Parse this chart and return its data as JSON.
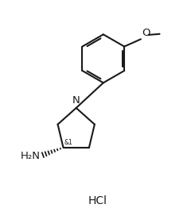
{
  "bg_color": "#ffffff",
  "line_color": "#1a1a1a",
  "line_width": 1.5,
  "font_size": 8.5,
  "fig_width": 2.45,
  "fig_height": 2.67,
  "dpi": 100,
  "xlim": [
    0,
    10
  ],
  "ylim": [
    0,
    10.9
  ]
}
